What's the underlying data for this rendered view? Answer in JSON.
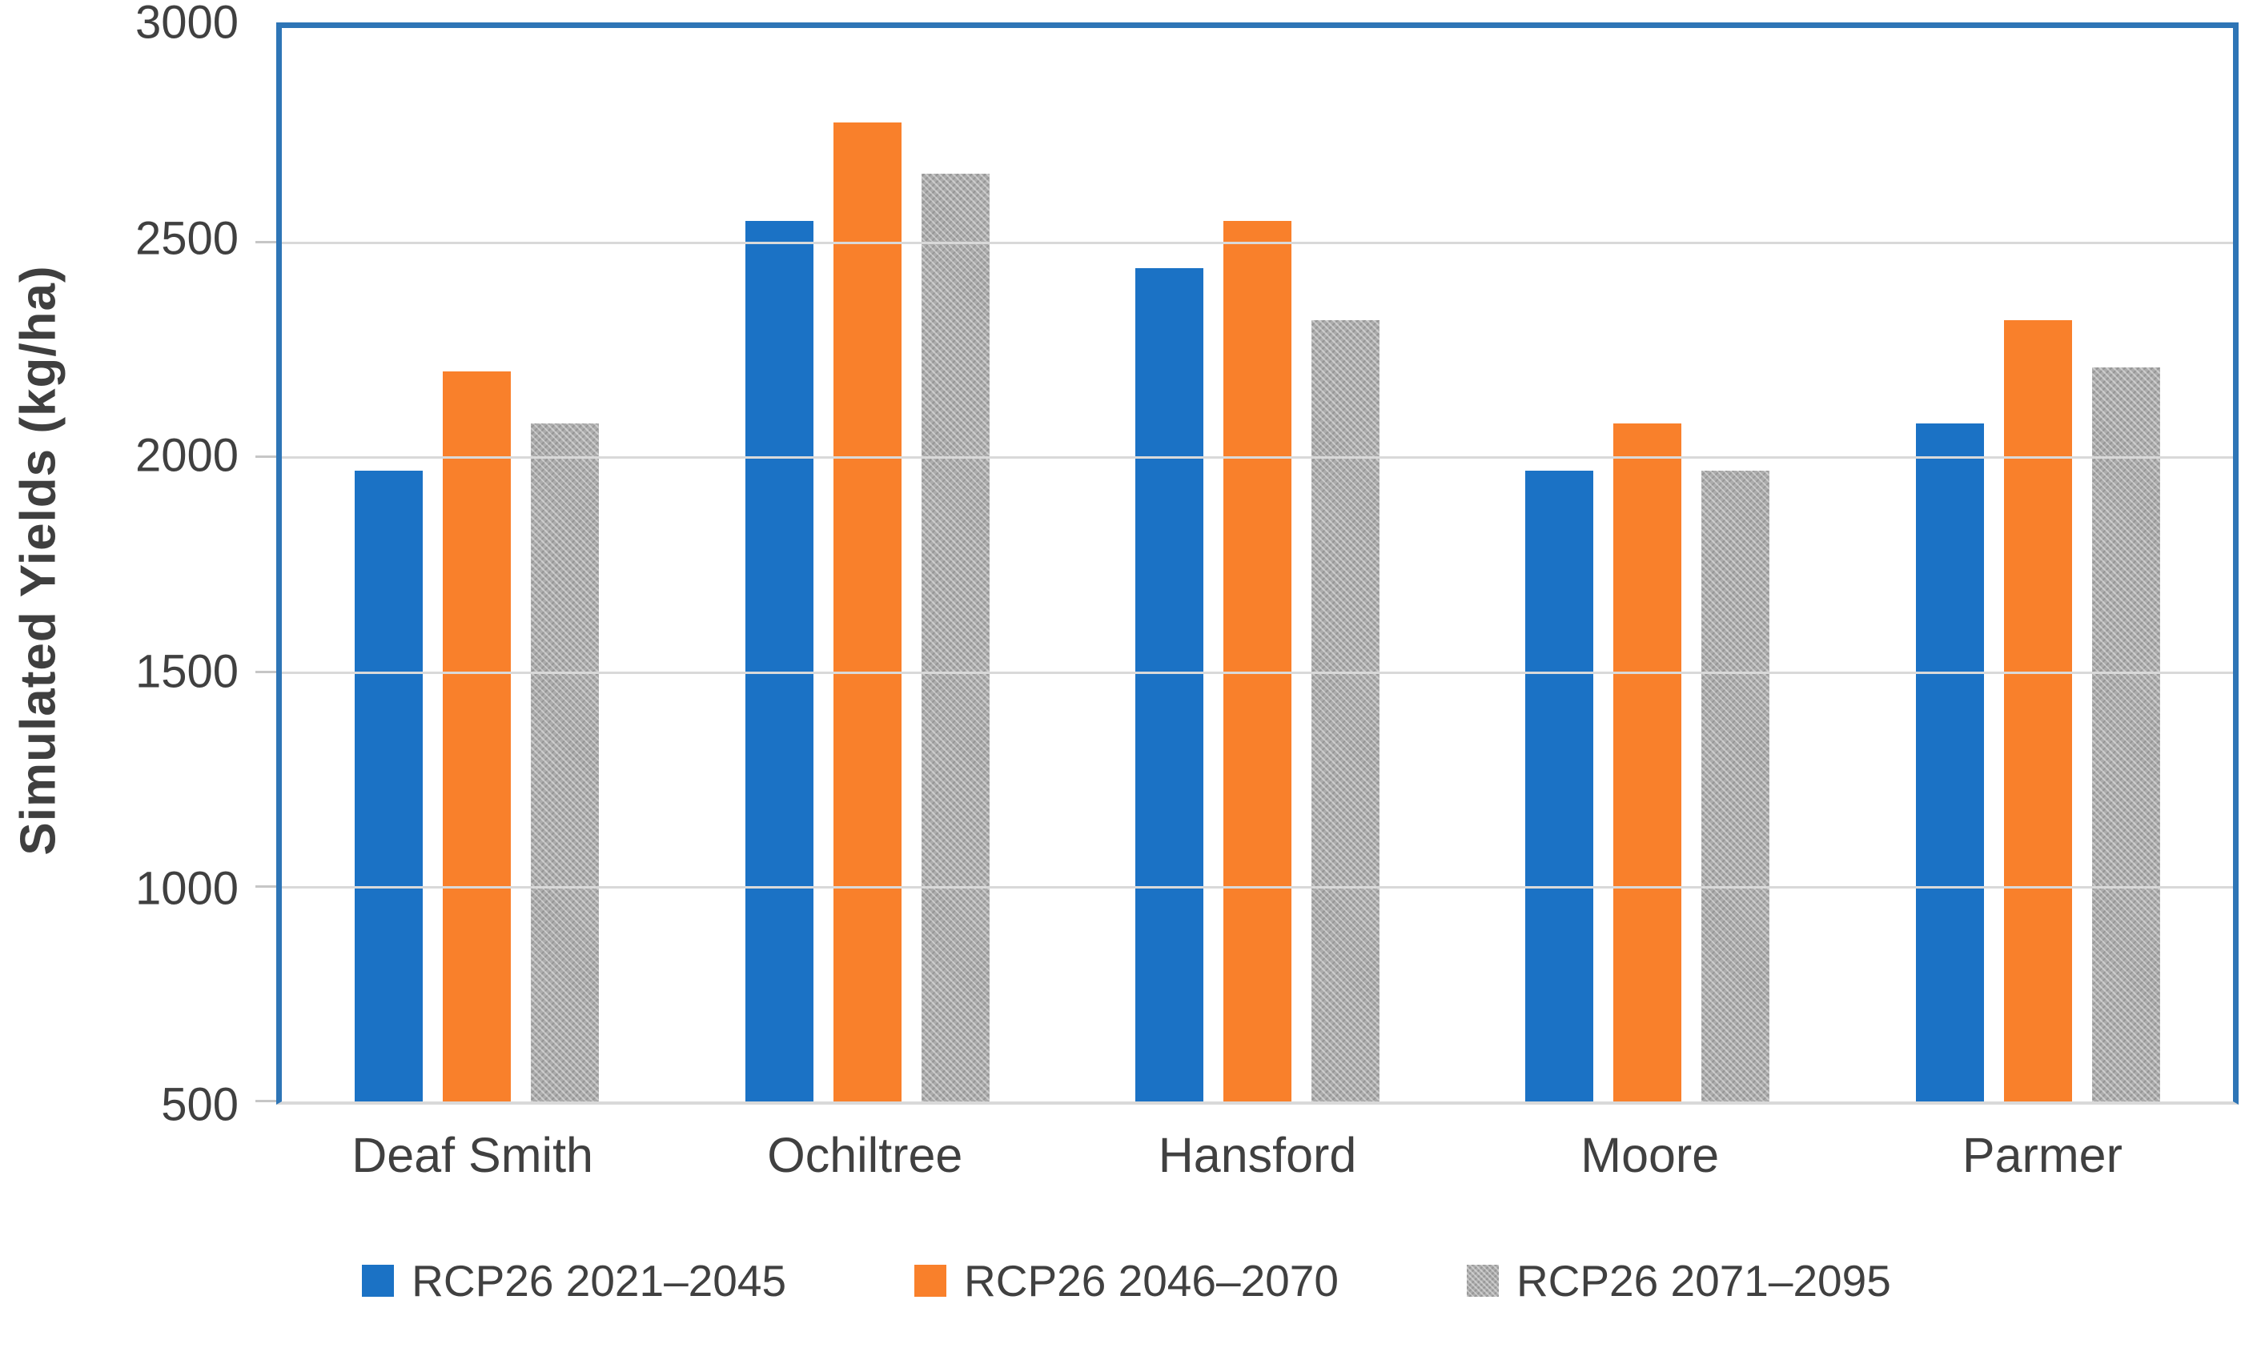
{
  "chart_data": {
    "type": "bar",
    "title": "",
    "categories": [
      "Deaf Smith",
      "Ochiltree",
      "Hansford",
      "Moore",
      "Parmer"
    ],
    "series": [
      {
        "name": "RCP26 2021–2045",
        "color": "#1b72c5",
        "pattern": false,
        "values": [
          1970,
          2550,
          2440,
          1970,
          2080
        ]
      },
      {
        "name": "RCP26 2046–2070",
        "color": "#f9802b",
        "pattern": false,
        "values": [
          2200,
          2780,
          2550,
          2080,
          2320
        ]
      },
      {
        "name": "RCP26 2071–2095",
        "color": "#acacac",
        "pattern": true,
        "values": [
          2080,
          2660,
          2320,
          1970,
          2210
        ]
      }
    ],
    "xlabel": "",
    "ylabel": "Simulated Yields (kg/ha)",
    "ylim": [
      500,
      3000
    ],
    "yticks": [
      3000,
      2500,
      2000,
      1500,
      1000,
      500
    ],
    "grid": true,
    "legend_position": "bottom"
  },
  "colors": {
    "plot_border": "#2e75b6",
    "gridline": "#d9d9d9",
    "axis_text": "#404040",
    "blue_series": "#1b72c5",
    "orange_series": "#f9802b",
    "gray_series": "#acacac"
  }
}
